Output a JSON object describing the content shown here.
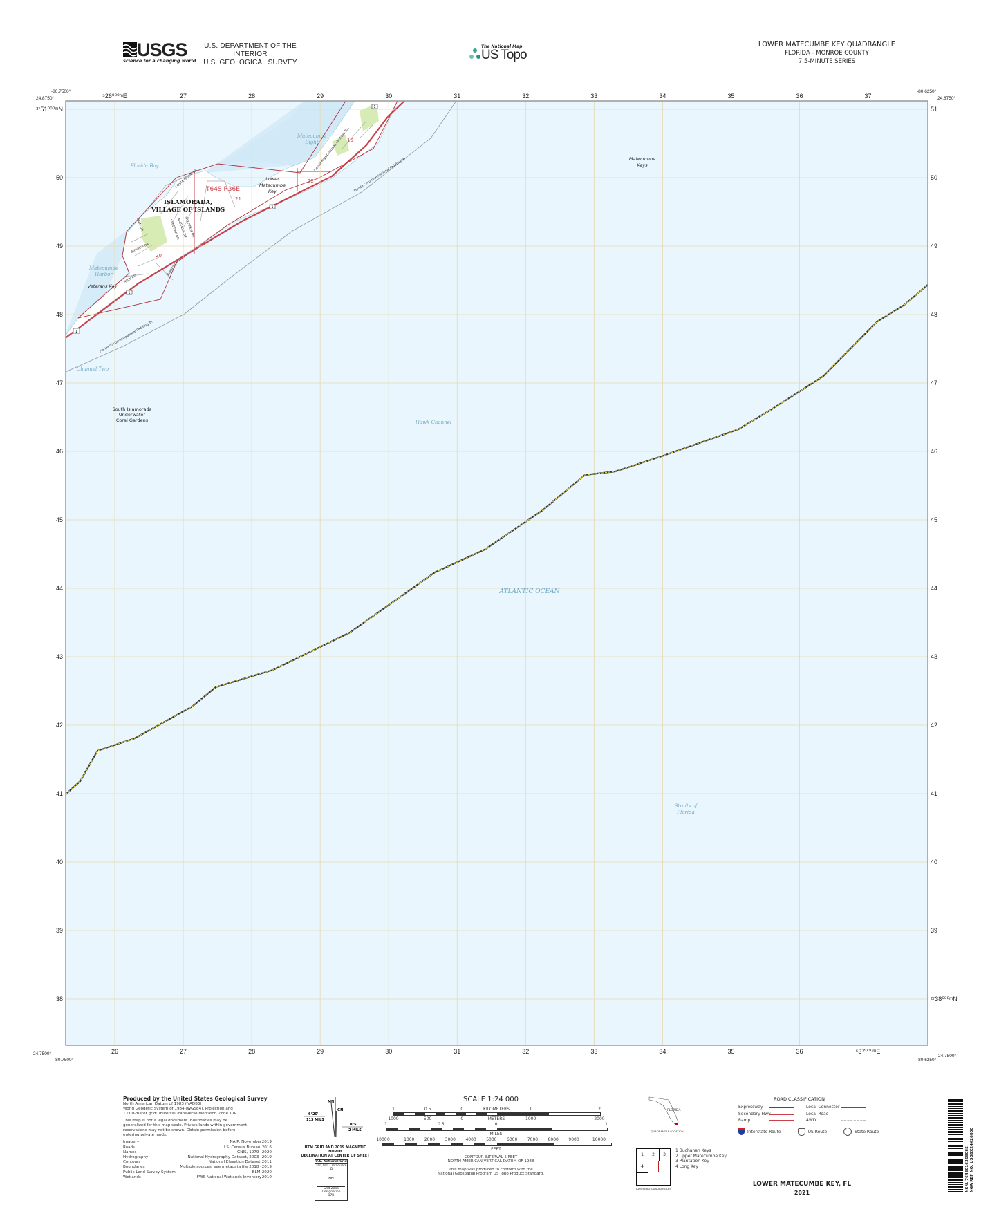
{
  "header": {
    "logo_text": "USGS",
    "logo_tagline": "science for a changing world",
    "dept_line1": "U.S. DEPARTMENT OF THE INTERIOR",
    "dept_line2": "U.S. GEOLOGICAL SURVEY",
    "national_map_small": "The National Map",
    "us_topo": "US Topo",
    "quad_title": "LOWER MATECUMBE KEY QUADRANGLE",
    "state_county": "FLORIDA - MONROE COUNTY",
    "series": "7.5-MINUTE SERIES"
  },
  "corners": {
    "tl_lon": "-80.7500°",
    "tl_lat": "24.8750°",
    "tr_lon": "-80.6250°",
    "tr_lat": "24.8750°",
    "bl_lon": "-80.7500°",
    "bl_lat": "24.7500°",
    "br_lon": "-80.6250°",
    "br_lat": "24.7500°"
  },
  "grid": {
    "eastings": [
      26,
      27,
      28,
      29,
      30,
      31,
      32,
      33,
      34,
      35,
      36,
      37
    ],
    "northings": [
      51,
      50,
      49,
      48,
      47,
      46,
      45,
      44,
      43,
      42,
      41,
      40,
      39,
      38
    ],
    "top_labels": [
      "⁵26⁰⁰⁰ᵐE",
      "27",
      "28",
      "29",
      "30",
      "31",
      "32",
      "33",
      "34",
      "35",
      "36",
      "37"
    ],
    "bottom_labels": [
      "26",
      "27",
      "28",
      "29",
      "30",
      "31",
      "32",
      "33",
      "34",
      "35",
      "36",
      "⁵37⁰⁰⁰ᵐE"
    ],
    "left_labels": [
      "²⁷51⁰⁰⁰ᵐN",
      "50",
      "49",
      "48",
      "47",
      "46",
      "45",
      "44",
      "43",
      "42",
      "41",
      "40",
      "39",
      "38"
    ],
    "right_labels": [
      "51",
      "50",
      "49",
      "48",
      "47",
      "46",
      "45",
      "44",
      "43",
      "42",
      "41",
      "40",
      "39",
      "²⁷38⁰⁰⁰ᵐN"
    ]
  },
  "map": {
    "colors": {
      "water": "#e9f6fd",
      "shallow": "#d4ebf7",
      "land": "#ffffff",
      "park": "#d6ecb4",
      "grid": "#e6d9b0",
      "boundary_red": "#b0303a",
      "road_red": "#c8414a",
      "water_text": "#6fa8c4"
    },
    "labels": {
      "florida_bay": "Florida Bay",
      "matecumbe_bight_1": "Matecumbe",
      "matecumbe_bight_2": "Bight",
      "matecumbe_keys_1": "Matecumbe",
      "matecumbe_keys_2": "Keys",
      "lower_matecumbe_1": "Lower",
      "lower_matecumbe_2": "Matecumbe",
      "lower_matecumbe_3": "Key",
      "township": "T64S R36E",
      "town_1": "ISLAMORADA,",
      "town_2": "VILLAGE OF ISLANDS",
      "harbor_1": "Matecumbe",
      "harbor_2": "Harbor",
      "veterans_key": "Veterans Key",
      "channel_two": "Channel Two",
      "coral_1": "South Islamorada",
      "coral_2": "Underwater",
      "coral_3": "Coral Gardens",
      "hawk_channel": "Hawk Channel",
      "atlantic": "ATLANTIC OCEAN",
      "straits_1": "Straits of",
      "straits_2": "Florida",
      "paddling_trail": "Florida Circumnavigational Paddling Trl",
      "heritage_trail": "Florida Keys Overseas Heritage Trl",
      "sections": [
        "20",
        "21",
        "22",
        "15"
      ],
      "route": "1",
      "streets": [
        "COSTA BRAVO DR",
        "HECK RD",
        "SUNSET DR",
        "BAYVIEW DR",
        "PALM DR",
        "GULFVIEW DR",
        "NAUTILUS DR",
        "VENETIAN DR"
      ]
    }
  },
  "footer": {
    "produced_by": "Produced by the United States Geological Survey",
    "datum_lines": [
      "North American Datum of 1983 (NAD83)",
      "World Geodetic System of 1984 (WGS84).  Projection and",
      "1 000-meter grid:Universal Transverse Mercator, Zone 17R"
    ],
    "legal_lines": [
      "This map is not a legal document. Boundaries may be",
      "generalized for this map scale. Private lands within government",
      "reservations may not be shown. Obtain permission before",
      "entering private lands."
    ],
    "credits": [
      {
        "item": "Imagery",
        "source": "NAIP, November",
        "year": "2019"
      },
      {
        "item": "Roads",
        "source": "U.S. Census Bureau,",
        "year": "2016"
      },
      {
        "item": "Names",
        "source": "GNIS, 1979 -",
        "year": "2020"
      },
      {
        "item": "Hydrography",
        "source": "National Hydrography Dataset, 2003 -",
        "year": "2019"
      },
      {
        "item": "Contours",
        "source": "National Elevation Dataset,",
        "year": "2011"
      },
      {
        "item": "Boundaries",
        "source": "Multiple sources; see metadata file 2018 -",
        "year": "2019"
      },
      {
        "item": "Public Land Survey System",
        "source": "BLM,",
        "year": "2020"
      },
      {
        "item": "Wetlands",
        "source": "FWS National Wetlands Inventory",
        "year": "2010"
      }
    ],
    "declination": {
      "mn": "MN",
      "gn": "GN",
      "left_angle": "6°20'",
      "left_mils": "113 MILS",
      "right_angle": "0°5'",
      "right_mils": "2 MILS",
      "caption_1": "UTM GRID AND 2019 MAGNETIC NORTH",
      "caption_2": "DECLINATION AT CENTER OF SHEET"
    },
    "usng": {
      "title": "U.S. National Grid",
      "square_label": "100,000 - m Square ID",
      "square_id": "NH",
      "zone_label": "Grid Zone Designation",
      "zone": "17R"
    },
    "scale": {
      "title": "SCALE 1:24 000",
      "km_ticks": [
        "1",
        "0.5",
        "0",
        "1",
        "2"
      ],
      "km_label": "KILOMETERS",
      "m_ticks": [
        "1000",
        "500",
        "0",
        "1000",
        "2000"
      ],
      "m_label": "METERS",
      "mi_ticks": [
        "1",
        "0.5",
        "0",
        "1"
      ],
      "mi_label": "MILES",
      "ft_ticks": [
        "1000",
        "0",
        "1000",
        "2000",
        "3000",
        "4000",
        "5000",
        "6000",
        "7000",
        "8000",
        "9000",
        "10000"
      ],
      "ft_label": "FEET"
    },
    "contour_1": "CONTOUR INTERVAL 5 FEET",
    "contour_2": "NORTH AMERICAN VERTICAL DATUM OF 1988",
    "conform_1": "This map was produced to conform with the",
    "conform_2": "National Geospatial Program US Topo Product Standard.",
    "location": {
      "state": "FLORIDA",
      "caption": "QUADRANGLE LOCATION"
    },
    "adjoining": {
      "cells": [
        "1",
        "2",
        "3",
        "4"
      ],
      "list": [
        "1 Buchanan Keys",
        "2 Upper Matecumbe Key",
        "3 Plantation Key",
        "4 Long Key"
      ],
      "caption": "ADJOINING QUADRANGLES"
    },
    "roads": {
      "title": "ROAD CLASSIFICATION",
      "left": [
        "Expressway",
        "Secondary Hwy",
        "Ramp"
      ],
      "right": [
        "Local Connector",
        "Local Road",
        "4WD"
      ],
      "routes": [
        "Interstate Route",
        "US Route",
        "State Route"
      ]
    },
    "sheet_title": "LOWER MATECUMBE KEY,  FL",
    "year": "2021",
    "barcode_line1": "NSN. 7643016358085",
    "barcode_line2": "NGA REF NO. USGSX24K26800"
  }
}
